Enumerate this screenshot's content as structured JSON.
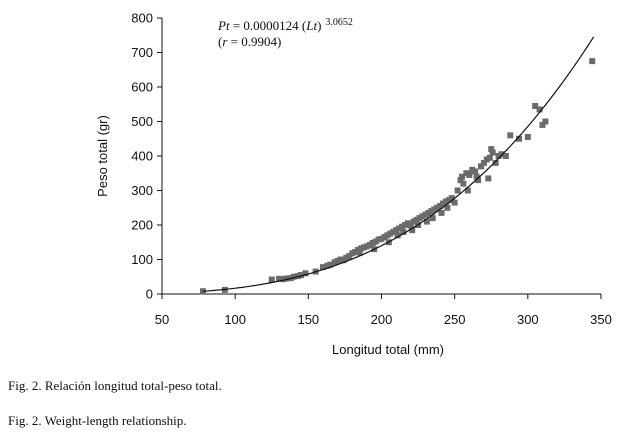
{
  "chart_data": {
    "type": "scatter",
    "xlabel": "Longitud total (mm)",
    "ylabel": "Peso total (gr)",
    "xlim": [
      50,
      350
    ],
    "ylim": [
      0,
      800
    ],
    "xticks": [
      "50",
      "100",
      "150",
      "200",
      "250",
      "300",
      "350"
    ],
    "yticks": [
      "0",
      "100",
      "200",
      "300",
      "400",
      "500",
      "600",
      "700",
      "800"
    ],
    "grid": false,
    "equation": {
      "line1": {
        "var": "Pt",
        "eq": " = 0.0000124 (",
        "var2": "Lt",
        "close": ")",
        "exponent": "3.0652"
      },
      "line2": {
        "open": "(",
        "var": "r",
        "eq": " = 0.9904)"
      }
    },
    "fit": {
      "a": 1.24e-05,
      "b": 3.0652,
      "x_range": [
        78,
        345
      ]
    },
    "marker_color": "#6b6b6b",
    "line_color": "#111111",
    "points": [
      [
        78,
        8
      ],
      [
        93,
        12
      ],
      [
        125,
        42
      ],
      [
        130,
        44
      ],
      [
        133,
        43
      ],
      [
        135,
        45
      ],
      [
        138,
        46
      ],
      [
        140,
        50
      ],
      [
        143,
        52
      ],
      [
        145,
        55
      ],
      [
        148,
        60
      ],
      [
        155,
        65
      ],
      [
        160,
        78
      ],
      [
        163,
        82
      ],
      [
        165,
        85
      ],
      [
        168,
        92
      ],
      [
        170,
        96
      ],
      [
        172,
        100
      ],
      [
        174,
        98
      ],
      [
        176,
        105
      ],
      [
        178,
        110
      ],
      [
        180,
        118
      ],
      [
        182,
        122
      ],
      [
        184,
        128
      ],
      [
        185,
        120
      ],
      [
        186,
        132
      ],
      [
        188,
        135
      ],
      [
        190,
        138
      ],
      [
        192,
        142
      ],
      [
        194,
        148
      ],
      [
        195,
        130
      ],
      [
        196,
        152
      ],
      [
        198,
        158
      ],
      [
        200,
        160
      ],
      [
        202,
        165
      ],
      [
        204,
        170
      ],
      [
        205,
        150
      ],
      [
        206,
        175
      ],
      [
        208,
        180
      ],
      [
        210,
        185
      ],
      [
        211,
        170
      ],
      [
        212,
        190
      ],
      [
        214,
        195
      ],
      [
        215,
        180
      ],
      [
        216,
        200
      ],
      [
        218,
        205
      ],
      [
        220,
        198
      ],
      [
        221,
        185
      ],
      [
        222,
        210
      ],
      [
        224,
        215
      ],
      [
        225,
        200
      ],
      [
        226,
        220
      ],
      [
        228,
        225
      ],
      [
        230,
        230
      ],
      [
        231,
        210
      ],
      [
        232,
        235
      ],
      [
        234,
        240
      ],
      [
        235,
        220
      ],
      [
        236,
        245
      ],
      [
        238,
        250
      ],
      [
        240,
        255
      ],
      [
        241,
        235
      ],
      [
        242,
        262
      ],
      [
        244,
        268
      ],
      [
        245,
        250
      ],
      [
        246,
        272
      ],
      [
        248,
        278
      ],
      [
        250,
        265
      ],
      [
        252,
        300
      ],
      [
        254,
        330
      ],
      [
        255,
        340
      ],
      [
        256,
        320
      ],
      [
        258,
        350
      ],
      [
        259,
        300
      ],
      [
        260,
        345
      ],
      [
        262,
        360
      ],
      [
        264,
        355
      ],
      [
        265,
        340
      ],
      [
        266,
        330
      ],
      [
        268,
        370
      ],
      [
        270,
        380
      ],
      [
        272,
        390
      ],
      [
        273,
        335
      ],
      [
        274,
        395
      ],
      [
        275,
        420
      ],
      [
        276,
        410
      ],
      [
        278,
        380
      ],
      [
        280,
        400
      ],
      [
        282,
        405
      ],
      [
        285,
        400
      ],
      [
        288,
        460
      ],
      [
        294,
        450
      ],
      [
        300,
        455
      ],
      [
        305,
        545
      ],
      [
        308,
        535
      ],
      [
        310,
        490
      ],
      [
        312,
        500
      ],
      [
        344,
        675
      ]
    ]
  },
  "captions": {
    "es": "Fig. 2. Relación longitud total-peso total.",
    "en": "Fig. 2. Weight-length relationship."
  }
}
